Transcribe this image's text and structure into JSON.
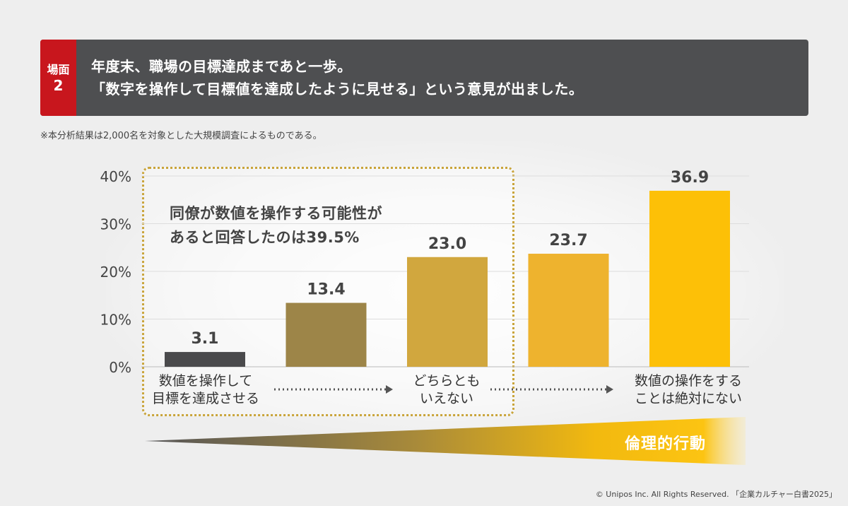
{
  "header": {
    "scene_label": "場面",
    "scene_number": "2",
    "line1": "年度末、職場の目標達成まであと一歩。",
    "line2": "「数字を操作して目標値を達成したように見せる」という意見が出ました。"
  },
  "note": "※本分析結果は2,000名を対象とした大規模調査によるものである。",
  "callout": {
    "line1": "同僚が数値を操作する可能性が",
    "line2": "あると回答したのは39.5%"
  },
  "scale_labels": {
    "left_line1": "数値を操作して",
    "left_line2": "目標を達成させる",
    "mid_line1": "どちらとも",
    "mid_line2": "いえない",
    "right_line1": "数値の操作をする",
    "right_line2": "ことは絶対にない"
  },
  "wedge_label": "倫理的行動",
  "footer": "© Unipos Inc. All Rights Reserved. 「企業カルチャー白書2025」",
  "colors": {
    "header_bg": "#4e4f51",
    "badge_red": "#c8161d",
    "bars": [
      "#4a4a4c",
      "#9d8548",
      "#d1a73e",
      "#eeb32e",
      "#fdc007"
    ],
    "dotted_border": "#c9a43a"
  },
  "chart_data": {
    "type": "bar",
    "categories": [
      "1",
      "2",
      "3",
      "4",
      "5"
    ],
    "values": [
      3.1,
      13.4,
      23.0,
      23.7,
      36.9
    ],
    "value_labels": [
      "3.1",
      "13.4",
      "23.0",
      "23.7",
      "36.9"
    ],
    "yticks": [
      "0%",
      "10%",
      "20%",
      "30%",
      "40%"
    ],
    "ylim": [
      0,
      40
    ],
    "grid": true,
    "title": "",
    "xlabel": "",
    "ylabel": ""
  }
}
